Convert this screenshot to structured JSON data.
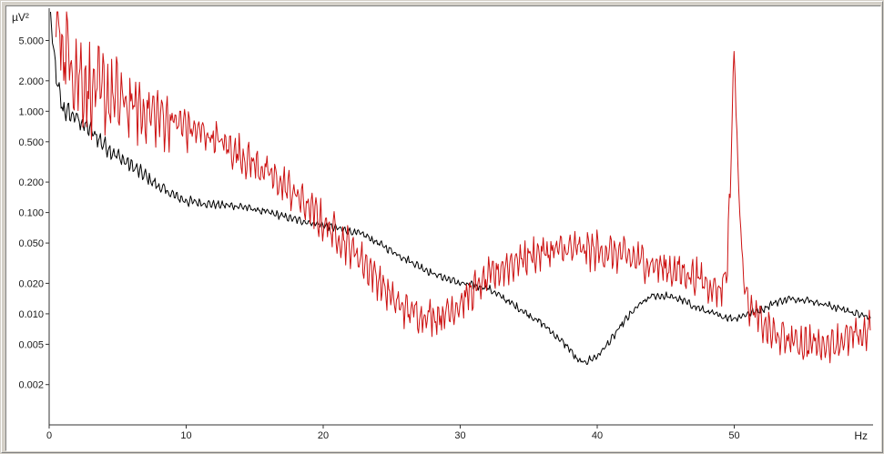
{
  "chart_data": {
    "type": "line",
    "xlabel": "Hz",
    "ylabel": "µV²",
    "xlim": [
      0,
      60
    ],
    "ylim": [
      0.0008,
      10
    ],
    "yscale": "log",
    "grid": false,
    "x_ticks": [
      0,
      10,
      20,
      30,
      40,
      50
    ],
    "x_tick_labels": [
      "0",
      "10",
      "20",
      "30",
      "40",
      "50"
    ],
    "y_ticks": [
      0.002,
      0.005,
      0.01,
      0.02,
      0.05,
      0.1,
      0.2,
      0.5,
      1,
      2,
      5
    ],
    "y_tick_labels": [
      "0.002",
      "0.005",
      "0.010",
      "0.020",
      "0.050",
      "0.100",
      "0.200",
      "0.500",
      "1.000",
      "2.000",
      "5.000"
    ],
    "series": [
      {
        "color": "#000000",
        "ripple": 0.045,
        "x": [
          0.1,
          0.3,
          0.6,
          1.0,
          2,
          3,
          4,
          5,
          6,
          7,
          8,
          9,
          10,
          12,
          14,
          16,
          18,
          20,
          22,
          23,
          24,
          26,
          28,
          30,
          32,
          34,
          36,
          37,
          38,
          38.5,
          39,
          40,
          41,
          42,
          43,
          44,
          45,
          46,
          47,
          48,
          49,
          50,
          51,
          52,
          53,
          54,
          55,
          56,
          58,
          60
        ],
        "values": [
          10,
          4,
          1.8,
          1.05,
          0.85,
          0.65,
          0.47,
          0.36,
          0.29,
          0.23,
          0.18,
          0.15,
          0.13,
          0.12,
          0.115,
          0.1,
          0.085,
          0.075,
          0.065,
          0.06,
          0.05,
          0.035,
          0.025,
          0.02,
          0.018,
          0.012,
          0.008,
          0.006,
          0.0045,
          0.0035,
          0.0033,
          0.0038,
          0.0055,
          0.0085,
          0.012,
          0.015,
          0.015,
          0.014,
          0.012,
          0.0105,
          0.0095,
          0.009,
          0.01,
          0.011,
          0.013,
          0.014,
          0.014,
          0.013,
          0.011,
          0.009
        ]
      },
      {
        "color": "#cc1111",
        "ripple": 0.22,
        "x": [
          0.5,
          1,
          2,
          3,
          4,
          5,
          6,
          7,
          8,
          9,
          10,
          11,
          12,
          13,
          14,
          15,
          16,
          17,
          18,
          19,
          20,
          21,
          22,
          23,
          24,
          25,
          26,
          27,
          28,
          29,
          30,
          31,
          32,
          33,
          34,
          35,
          36,
          37,
          38,
          39,
          40,
          41,
          42,
          43,
          44,
          45,
          46,
          47,
          48,
          49,
          49.5,
          49.8,
          50,
          50.2,
          50.5,
          51,
          52,
          53,
          54,
          55,
          56,
          57,
          58,
          59,
          60
        ],
        "values": [
          9,
          4.5,
          2.5,
          1.6,
          1.5,
          1.3,
          1.1,
          1.0,
          0.9,
          0.8,
          0.7,
          0.62,
          0.55,
          0.45,
          0.37,
          0.3,
          0.24,
          0.19,
          0.15,
          0.11,
          0.08,
          0.06,
          0.045,
          0.032,
          0.022,
          0.014,
          0.011,
          0.01,
          0.0095,
          0.01,
          0.013,
          0.017,
          0.022,
          0.028,
          0.033,
          0.037,
          0.04,
          0.042,
          0.043,
          0.043,
          0.042,
          0.04,
          0.037,
          0.034,
          0.031,
          0.028,
          0.026,
          0.024,
          0.02,
          0.017,
          0.03,
          0.5,
          4.5,
          0.5,
          0.05,
          0.012,
          0.008,
          0.006,
          0.0055,
          0.0052,
          0.005,
          0.0052,
          0.0055,
          0.006,
          0.007
        ]
      }
    ]
  }
}
